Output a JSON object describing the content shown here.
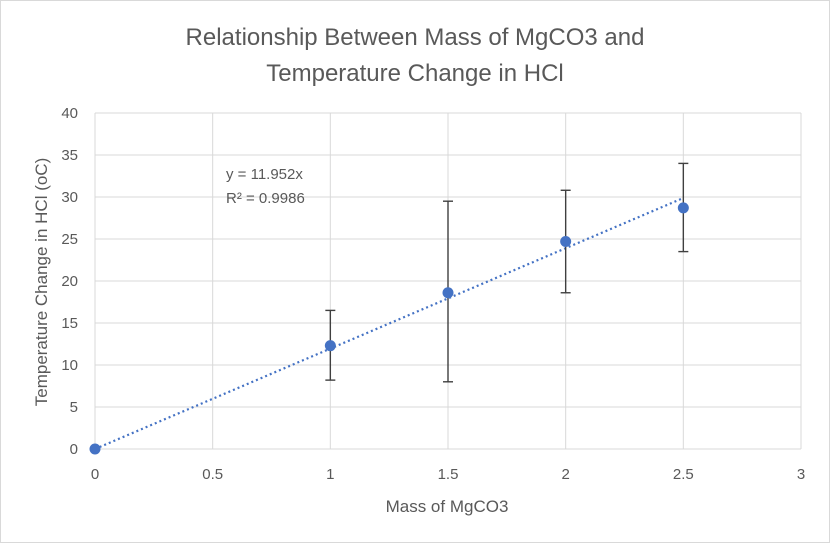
{
  "chart_data": {
    "type": "scatter",
    "title": [
      "Relationship Between Mass of MgCO3 and",
      "Temperature  Change in HCl"
    ],
    "xlabel": "Mass of MgCO3",
    "ylabel": "Temperature Change in HCl (oC)",
    "xlim": [
      0,
      3
    ],
    "ylim": [
      0,
      40
    ],
    "x_ticks": [
      0,
      0.5,
      1,
      1.5,
      2,
      2.5,
      3
    ],
    "y_ticks": [
      0,
      5,
      10,
      15,
      20,
      25,
      30,
      35,
      40
    ],
    "grid": true,
    "legend": "none",
    "series": [
      {
        "x": [
          0,
          1,
          1.5,
          2,
          2.5
        ],
        "y": [
          0,
          12.3,
          18.6,
          24.7,
          28.7
        ],
        "error_low": [
          0,
          8.2,
          8.0,
          18.6,
          23.5
        ],
        "error_high": [
          0,
          16.5,
          29.5,
          30.8,
          34.0
        ],
        "color": "#4472C4"
      }
    ],
    "trendline": {
      "slope": 11.952,
      "x_range": [
        0,
        2.5
      ],
      "style": "dotted",
      "color": "#4472C4",
      "equation": "y = 11.952x",
      "r_squared": "R² = 0.9986"
    }
  }
}
